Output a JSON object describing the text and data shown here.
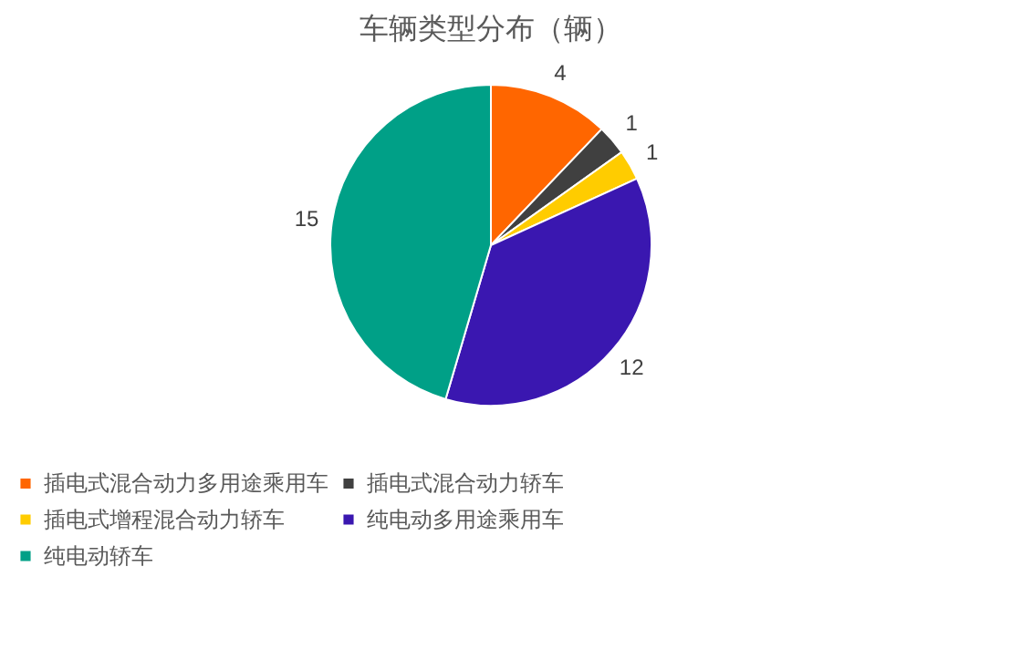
{
  "chart_data": {
    "type": "pie",
    "title": "车辆类型分布（辆）",
    "categories": [
      "插电式混合动力多用途乘用车",
      "插电式混合动力轿车",
      "插电式增程混合动力轿车",
      "纯电动多用途乘用车",
      "纯电动轿车"
    ],
    "values": [
      4,
      1,
      1,
      12,
      15
    ],
    "colors": [
      "#ff6600",
      "#404040",
      "#ffcc00",
      "#3a17b0",
      "#00a087"
    ],
    "data_labels": true,
    "legend": "bottom"
  }
}
